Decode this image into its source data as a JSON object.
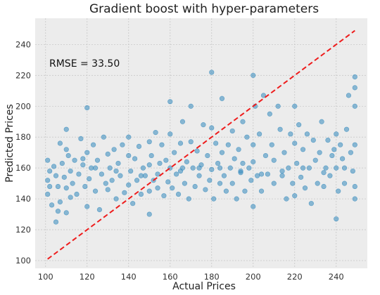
{
  "chart_data": {
    "type": "scatter",
    "title": "Gradient boost with hyper-parameters",
    "xlabel": "Actual Prices",
    "ylabel": "Predicted Prices",
    "xlim": [
      95,
      255
    ],
    "ylim": [
      95,
      257
    ],
    "x_ticks": [
      100,
      120,
      140,
      160,
      180,
      200,
      220,
      240
    ],
    "y_ticks": [
      100,
      120,
      140,
      160,
      180,
      200,
      220,
      240
    ],
    "grid": true,
    "annotation": "RMSE = 33.50",
    "reference_line": {
      "from": [
        101,
        101
      ],
      "to": [
        249,
        249
      ],
      "style": "dashed",
      "color": "#ee1c1c"
    },
    "point_color": "#348abd",
    "plot_background": "#ececec",
    "series": [
      {
        "points": [
          [
            101,
            165
          ],
          [
            101,
            152
          ],
          [
            101,
            143
          ],
          [
            102,
            158
          ],
          [
            102,
            148
          ],
          [
            103,
            136
          ],
          [
            104,
            161
          ],
          [
            105,
            125
          ],
          [
            105,
            155
          ],
          [
            106,
            148
          ],
          [
            107,
            176
          ],
          [
            107,
            138
          ],
          [
            108,
            163
          ],
          [
            109,
            154
          ],
          [
            110,
            185
          ],
          [
            110,
            172
          ],
          [
            110,
            147
          ],
          [
            110,
            131
          ],
          [
            111,
            168
          ],
          [
            112,
            158
          ],
          [
            113,
            150
          ],
          [
            114,
            165
          ],
          [
            115,
            143
          ],
          [
            116,
            156
          ],
          [
            117,
            179
          ],
          [
            118,
            162
          ],
          [
            119,
            148
          ],
          [
            120,
            170
          ],
          [
            120,
            199
          ],
          [
            120,
            135
          ],
          [
            121,
            153
          ],
          [
            122,
            160
          ],
          [
            123,
            175
          ],
          [
            124,
            145
          ],
          [
            125,
            165
          ],
          [
            126,
            133
          ],
          [
            127,
            156
          ],
          [
            128,
            180
          ],
          [
            129,
            150
          ],
          [
            130,
            169
          ],
          [
            130,
            146
          ],
          [
            131,
            160
          ],
          [
            132,
            152
          ],
          [
            133,
            172
          ],
          [
            134,
            140
          ],
          [
            135,
            163
          ],
          [
            136,
            155
          ],
          [
            137,
            175
          ],
          [
            138,
            144
          ],
          [
            140,
            168
          ],
          [
            140,
            180
          ],
          [
            140,
            149
          ],
          [
            141,
            158
          ],
          [
            142,
            137
          ],
          [
            143,
            166
          ],
          [
            144,
            152
          ],
          [
            145,
            174
          ],
          [
            146,
            143
          ],
          [
            147,
            160
          ],
          [
            148,
            155
          ],
          [
            150,
            177
          ],
          [
            150,
            130
          ],
          [
            150,
            162
          ],
          [
            150,
            145
          ],
          [
            151,
            168
          ],
          [
            152,
            152
          ],
          [
            153,
            183
          ],
          [
            154,
            147
          ],
          [
            155,
            163
          ],
          [
            156,
            175
          ],
          [
            157,
            142
          ],
          [
            158,
            165
          ],
          [
            159,
            151
          ],
          [
            160,
            182
          ],
          [
            160,
            160
          ],
          [
            160,
            203
          ],
          [
            161,
            147
          ],
          [
            162,
            170
          ],
          [
            163,
            156
          ],
          [
            164,
            143
          ],
          [
            165,
            176
          ],
          [
            165,
            158
          ],
          [
            166,
            190
          ],
          [
            167,
            150
          ],
          [
            168,
            164
          ],
          [
            169,
            140
          ],
          [
            170,
            177
          ],
          [
            170,
            200
          ],
          [
            171,
            160
          ],
          [
            172,
            148
          ],
          [
            173,
            171
          ],
          [
            174,
            155
          ],
          [
            175,
            162
          ],
          [
            176,
            188
          ],
          [
            177,
            146
          ],
          [
            178,
            168
          ],
          [
            179,
            152
          ],
          [
            180,
            186
          ],
          [
            180,
            222
          ],
          [
            180,
            159
          ],
          [
            181,
            140
          ],
          [
            182,
            176
          ],
          [
            183,
            163
          ],
          [
            184,
            150
          ],
          [
            185,
            205
          ],
          [
            185,
            170
          ],
          [
            186,
            155
          ],
          [
            187,
            145
          ],
          [
            188,
            175
          ],
          [
            189,
            160
          ],
          [
            190,
            184
          ],
          [
            190,
            150
          ],
          [
            191,
            166
          ],
          [
            192,
            140
          ],
          [
            193,
            172
          ],
          [
            194,
            157
          ],
          [
            195,
            190
          ],
          [
            195,
            163
          ],
          [
            196,
            145
          ],
          [
            197,
            180
          ],
          [
            198,
            160
          ],
          [
            199,
            152
          ],
          [
            200,
            220
          ],
          [
            200,
            175
          ],
          [
            200,
            135
          ],
          [
            200,
            164
          ],
          [
            201,
            200
          ],
          [
            202,
            155
          ],
          [
            203,
            182
          ],
          [
            204,
            145
          ],
          [
            205,
            207
          ],
          [
            206,
            168
          ],
          [
            207,
            156
          ],
          [
            208,
            195
          ],
          [
            209,
            175
          ],
          [
            210,
            150
          ],
          [
            210,
            165
          ],
          [
            212,
            200
          ],
          [
            213,
            185
          ],
          [
            214,
            158
          ],
          [
            215,
            170
          ],
          [
            216,
            140
          ],
          [
            217,
            160
          ],
          [
            218,
            182
          ],
          [
            219,
            150
          ],
          [
            220,
            176
          ],
          [
            220,
            200
          ],
          [
            220,
            142
          ],
          [
            221,
            163
          ],
          [
            222,
            188
          ],
          [
            223,
            154
          ],
          [
            224,
            172
          ],
          [
            225,
            147
          ],
          [
            226,
            182
          ],
          [
            227,
            160
          ],
          [
            228,
            137
          ],
          [
            229,
            178
          ],
          [
            230,
            165
          ],
          [
            231,
            150
          ],
          [
            232,
            170
          ],
          [
            233,
            190
          ],
          [
            234,
            148
          ],
          [
            235,
            160
          ],
          [
            236,
            178
          ],
          [
            237,
            155
          ],
          [
            238,
            168
          ],
          [
            239,
            172
          ],
          [
            240,
            182
          ],
          [
            240,
            127
          ],
          [
            240,
            160
          ],
          [
            241,
            145
          ],
          [
            242,
            175
          ],
          [
            243,
            166
          ],
          [
            244,
            150
          ],
          [
            245,
            185
          ],
          [
            246,
            207
          ],
          [
            247,
            170
          ],
          [
            248,
            158
          ],
          [
            249,
            219
          ],
          [
            249,
            212
          ],
          [
            249,
            200
          ],
          [
            249,
            175
          ],
          [
            249,
            148
          ],
          [
            249,
            140
          ],
          [
            106,
            132
          ],
          [
            112,
            141
          ],
          [
            118,
            166
          ],
          [
            124,
            160
          ],
          [
            134,
            158
          ],
          [
            146,
            155
          ],
          [
            154,
            156
          ],
          [
            166,
            160
          ],
          [
            174,
            160
          ],
          [
            184,
            160
          ],
          [
            194,
            158
          ],
          [
            204,
            156
          ],
          [
            214,
            155
          ],
          [
            224,
            160
          ],
          [
            234,
            157
          ],
          [
            244,
            160
          ]
        ]
      }
    ]
  }
}
